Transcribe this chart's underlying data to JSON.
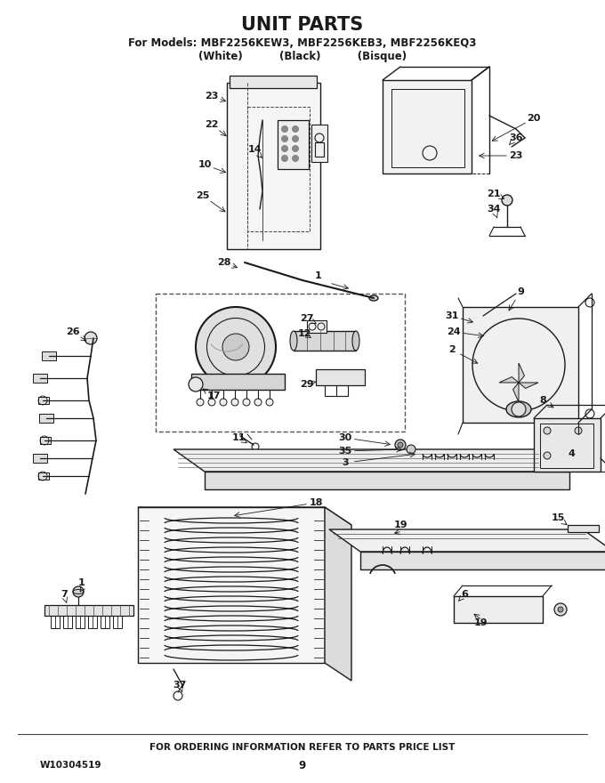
{
  "title": "UNIT PARTS",
  "subtitle_line1": "For Models: MBF2256KEW3, MBF2256KEB3, MBF2256KEQ3",
  "subtitle_line2": "(White)          (Black)          (Bisque)",
  "footer_text": "FOR ORDERING INFORMATION REFER TO PARTS PRICE LIST",
  "part_number": "W10304519",
  "page_number": "9",
  "bg_color": "#ffffff",
  "title_fontsize": 15,
  "subtitle_fontsize": 8.5,
  "footer_fontsize": 7.5,
  "label_fontsize": 8,
  "fig_w": 6.8,
  "fig_h": 8.8,
  "dpi": 100
}
